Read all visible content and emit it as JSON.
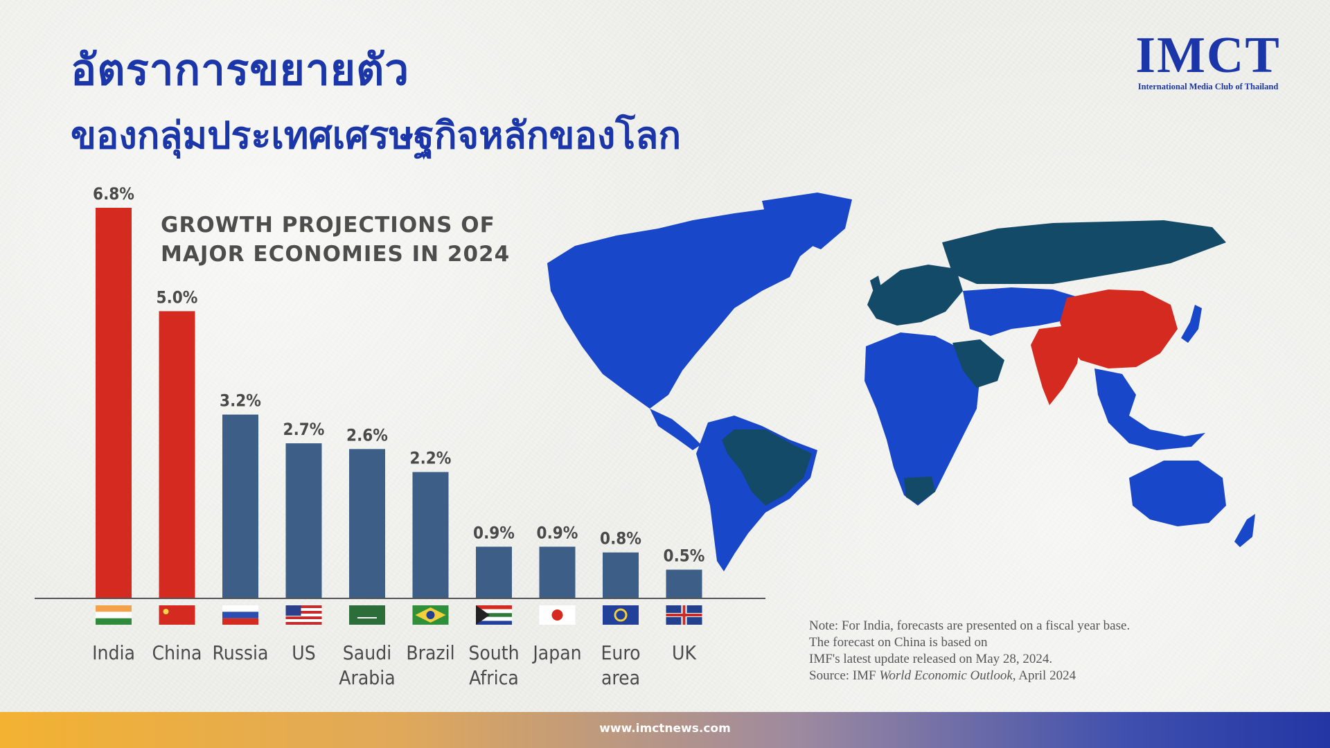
{
  "header": {
    "title_line1": "อัตราการขยายตัว",
    "title_line2": "ของกลุ่มประเทศเศรษฐกิจหลักของโลก"
  },
  "logo": {
    "name": "IMCT",
    "subtitle": "International Media Club of Thailand"
  },
  "colors": {
    "brand_blue": "#1b36a8",
    "highlight_red": "#d42a1f",
    "bar_blue": "#3d5f87",
    "map_blue": "#1947c9",
    "map_dark": "#124a68"
  },
  "chart_data": {
    "type": "bar",
    "title_lines": [
      "GROWTH PROJECTIONS OF",
      "MAJOR ECONOMIES IN 2024"
    ],
    "categories": [
      {
        "label": [
          "India"
        ],
        "flag": "india-flag-icon"
      },
      {
        "label": [
          "China"
        ],
        "flag": "china-flag-icon"
      },
      {
        "label": [
          "Russia"
        ],
        "flag": "russia-flag-icon"
      },
      {
        "label": [
          "US"
        ],
        "flag": "us-flag-icon"
      },
      {
        "label": [
          "Saudi",
          "Arabia"
        ],
        "flag": "saudi-arabia-flag-icon"
      },
      {
        "label": [
          "Brazil"
        ],
        "flag": "brazil-flag-icon"
      },
      {
        "label": [
          "South",
          "Africa"
        ],
        "flag": "south-africa-flag-icon"
      },
      {
        "label": [
          "Japan"
        ],
        "flag": "japan-flag-icon"
      },
      {
        "label": [
          "Euro",
          "area"
        ],
        "flag": "euro-area-flag-icon"
      },
      {
        "label": [
          "UK"
        ],
        "flag": "uk-flag-icon"
      }
    ],
    "values": [
      6.8,
      5.0,
      3.2,
      2.7,
      2.6,
      2.2,
      0.9,
      0.9,
      0.8,
      0.5
    ],
    "value_labels": [
      "6.8%",
      "5.0%",
      "3.2%",
      "2.7%",
      "2.6%",
      "2.2%",
      "0.9%",
      "0.9%",
      "0.8%",
      "0.5%"
    ],
    "highlighted": [
      true,
      true,
      false,
      false,
      false,
      false,
      false,
      false,
      false,
      false
    ],
    "ylim": [
      0,
      6.8
    ],
    "grid": false,
    "legend": "none"
  },
  "map": {
    "description_hidden": false,
    "highlight_colors": [
      "#d42a1f",
      "#124a68",
      "#1947c9"
    ]
  },
  "note": {
    "line1": "Note: For India, forecasts are presented on a fiscal year base.",
    "line2": "The forecast on China is based on",
    "line3": "IMF's latest update released on May 28, 2024.",
    "line4_prefix": "Source: IMF ",
    "line4_italic": "World Economic Outlook",
    "line4_suffix": ", April 2024"
  },
  "footer": {
    "url": "www.imctnews.com"
  }
}
